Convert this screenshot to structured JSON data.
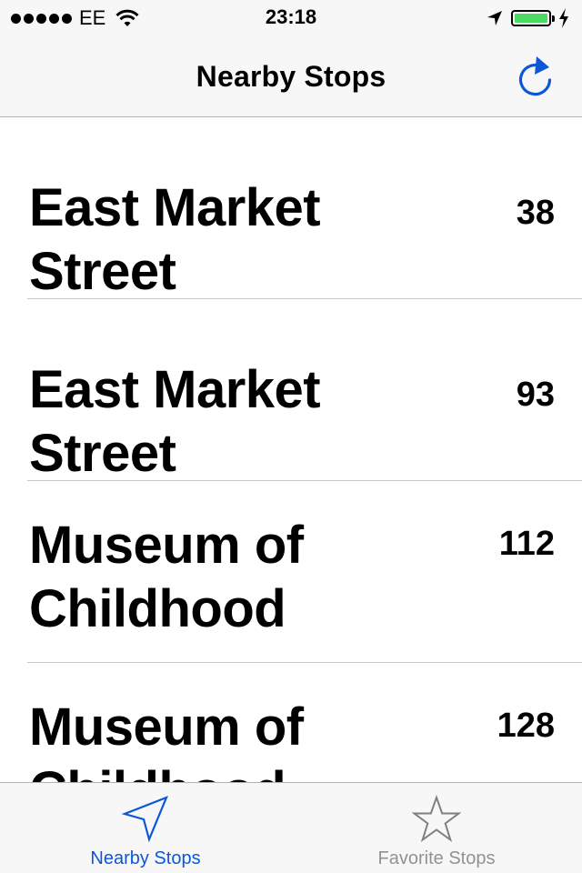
{
  "status_bar": {
    "carrier": "EE",
    "time": "23:18",
    "battery_level": 1.0,
    "signal_bars": 5,
    "icons": [
      "wifi-icon",
      "location-arrow-icon",
      "battery-icon",
      "charging-bolt-icon"
    ]
  },
  "nav": {
    "title": "Nearby Stops",
    "refresh_icon": "refresh-icon"
  },
  "stops": [
    {
      "name": "East Market Street",
      "number": "38"
    },
    {
      "name": "East Market Street",
      "number": "93"
    },
    {
      "name": "Museum of Childhood",
      "number": "112"
    },
    {
      "name": "Museum of Childhood",
      "number": "128"
    }
  ],
  "tabs": [
    {
      "label": "Nearby Stops",
      "icon": "location-arrow-icon",
      "active": true
    },
    {
      "label": "Favorite Stops",
      "icon": "star-icon",
      "active": false
    }
  ],
  "colors": {
    "accent": "#0c57d8",
    "battery": "#4cd964",
    "inactive_tab": "#929292",
    "bar_background": "#f7f7f7"
  }
}
